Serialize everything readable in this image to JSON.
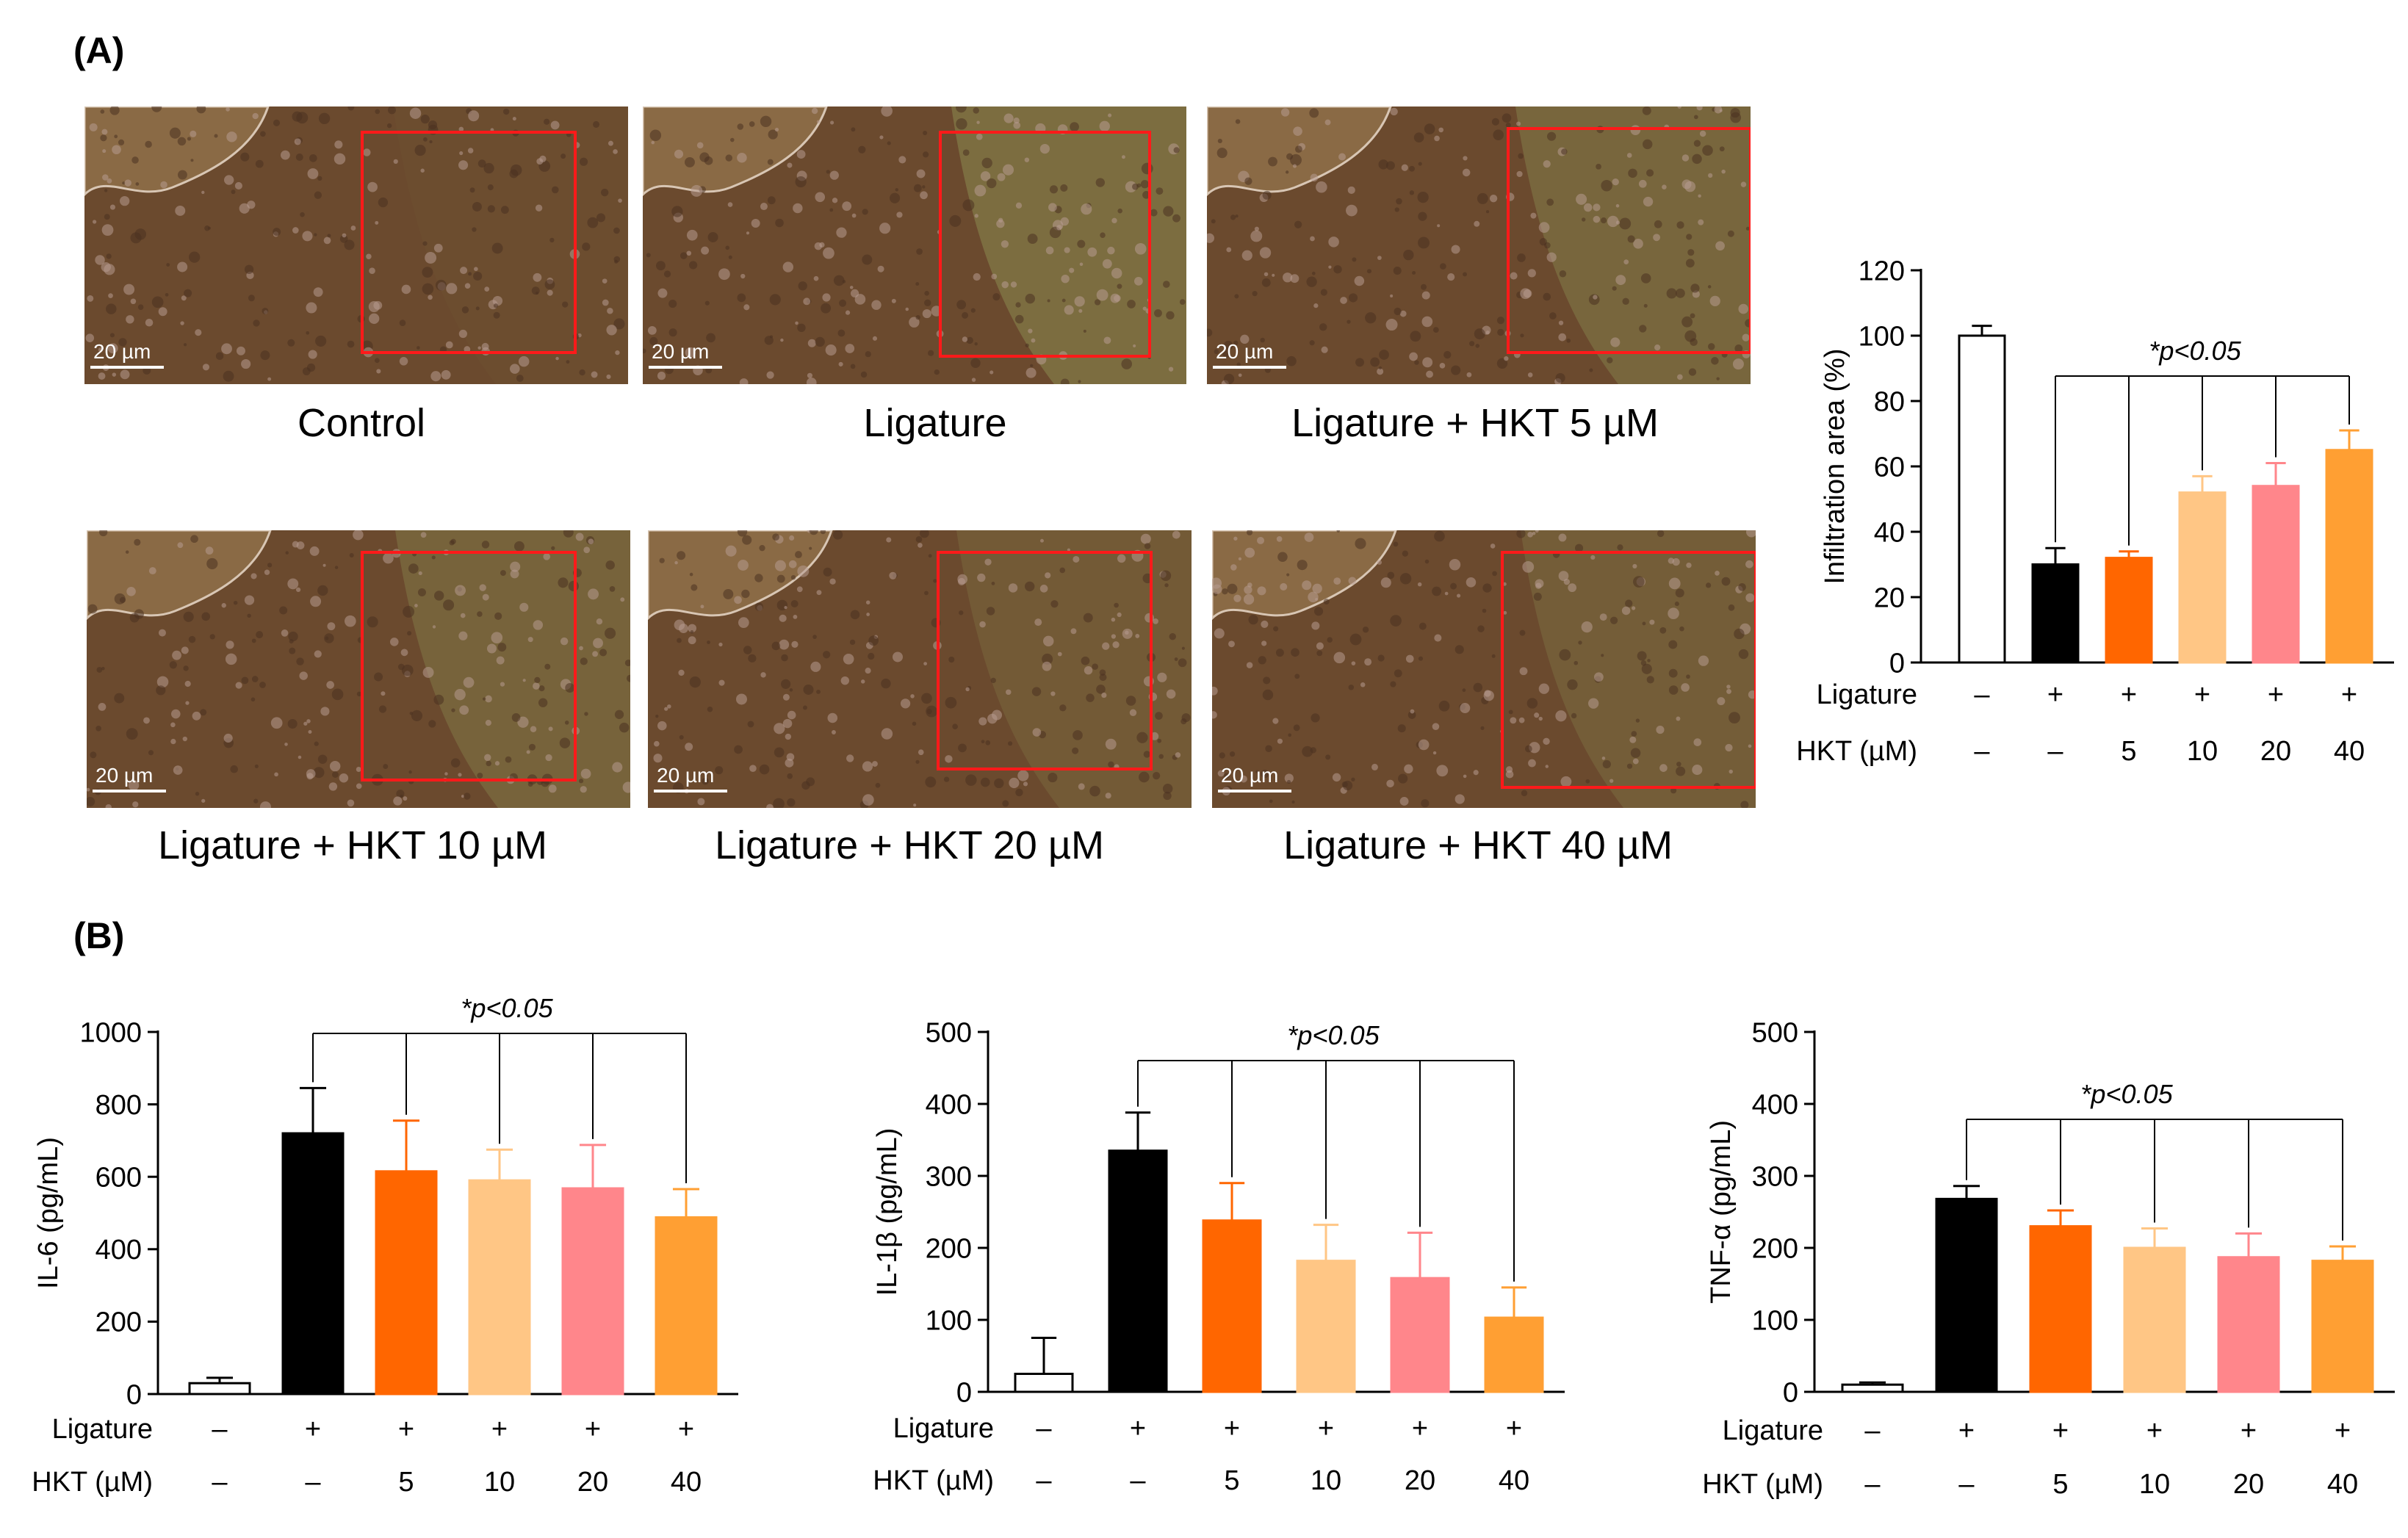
{
  "panel_a_label": "(A)",
  "panel_b_label": "(B)",
  "scale_bar_text": "20 µm",
  "micrographs": [
    {
      "caption": "Control"
    },
    {
      "caption": "Ligature"
    },
    {
      "caption": "Ligature + HKT 5 µM"
    },
    {
      "caption": "Ligature + HKT 10 µM"
    },
    {
      "caption": "Ligature + HKT 20 µM"
    },
    {
      "caption": "Ligature + HKT 40 µM"
    }
  ],
  "row_labels": {
    "ligature": "Ligature",
    "hkt": "HKT (µM)"
  },
  "group_rows": {
    "ligature": [
      "–",
      "+",
      "+",
      "+",
      "+",
      "+"
    ],
    "hkt": [
      "–",
      "–",
      "5",
      "10",
      "20",
      "40"
    ]
  },
  "colors": [
    "#ffffff",
    "#000000",
    "#ff6600",
    "#ffc685",
    "#ff868b",
    "#ff9f33"
  ],
  "chart_data": [
    {
      "type": "bar",
      "id": "infiltration",
      "title": "",
      "ylabel": "Infiltration area (%)",
      "xlabel": "",
      "ylim": [
        0,
        120
      ],
      "yticks": [
        0,
        20,
        40,
        60,
        80,
        100,
        120
      ],
      "values": [
        100,
        30,
        32,
        52,
        54,
        65
      ],
      "errors": [
        3,
        5,
        2,
        5,
        7,
        6
      ],
      "significance": "*p<0.05"
    },
    {
      "type": "bar",
      "id": "il6",
      "title": "",
      "ylabel": "IL-6 (pg/mL)",
      "xlabel": "",
      "ylim": [
        0,
        1000
      ],
      "yticks": [
        0,
        200,
        400,
        600,
        800,
        1000
      ],
      "values": [
        30,
        720,
        615,
        590,
        568,
        488
      ],
      "errors": [
        15,
        125,
        140,
        85,
        120,
        78
      ],
      "significance": "*p<0.05"
    },
    {
      "type": "bar",
      "id": "il1b",
      "title": "",
      "ylabel": "IL-1β (pg/mL)",
      "xlabel": "",
      "ylim": [
        0,
        500
      ],
      "yticks": [
        0,
        100,
        200,
        300,
        400,
        500
      ],
      "values": [
        25,
        335,
        238,
        182,
        158,
        103
      ],
      "errors": [
        50,
        53,
        52,
        50,
        63,
        42
      ],
      "significance": "*p<0.05"
    },
    {
      "type": "bar",
      "id": "tnfa",
      "title": "",
      "ylabel": "TNF-α (pg/mL)",
      "xlabel": "",
      "ylim": [
        0,
        500
      ],
      "yticks": [
        0,
        100,
        200,
        300,
        400,
        500
      ],
      "values": [
        10,
        268,
        230,
        200,
        187,
        182
      ],
      "errors": [
        3,
        18,
        22,
        27,
        33,
        20
      ],
      "significance": "*p<0.05"
    }
  ]
}
